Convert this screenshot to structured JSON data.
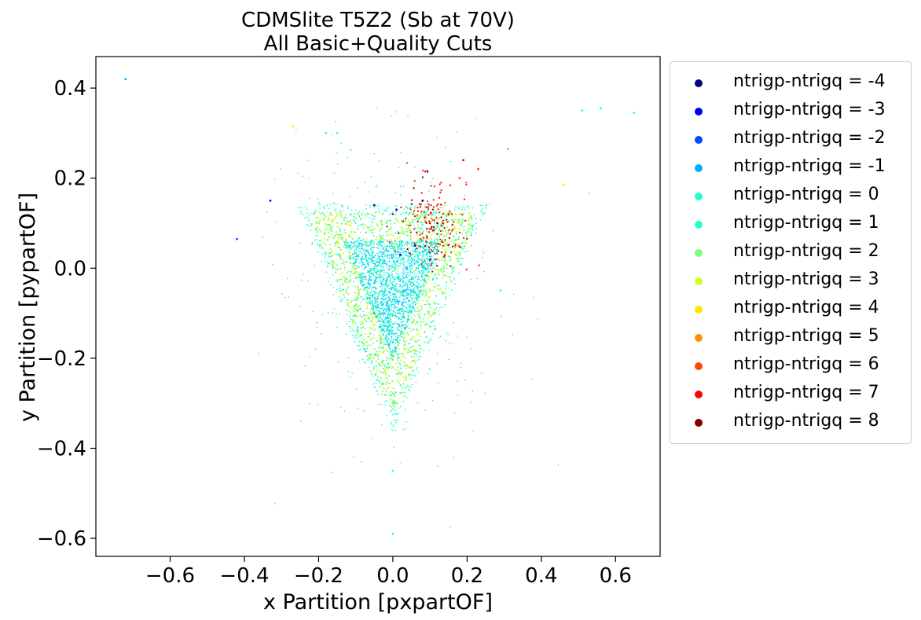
{
  "chart_data": {
    "type": "scatter",
    "title": "CDMSlite T5Z2 (Sb at 70V)",
    "subtitle": "All Basic+Quality Cuts",
    "xlabel": "x Partition [pxpartOF]",
    "ylabel": "y Partition [pypartOF]",
    "xlim": [
      -0.8,
      0.72
    ],
    "ylim": [
      -0.64,
      0.47
    ],
    "x_ticks": [
      -0.6,
      -0.4,
      -0.2,
      0.0,
      0.2,
      0.4,
      0.6
    ],
    "y_ticks": [
      -0.6,
      -0.4,
      -0.2,
      0.0,
      0.2,
      0.4
    ],
    "x_tick_labels": [
      "−0.6",
      "−0.4",
      "−0.2",
      "0.0",
      "0.2",
      "0.4",
      "0.6"
    ],
    "y_tick_labels": [
      "−0.6",
      "−0.4",
      "−0.2",
      "0.0",
      "0.2",
      "0.4"
    ],
    "grid": false,
    "legend_position": "outside-right",
    "series": [
      {
        "name": "ntrigp-ntrigq = -4",
        "color": "#00007f",
        "points": [
          [
            0.02,
            0.03
          ],
          [
            -0.05,
            0.14
          ]
        ]
      },
      {
        "name": "ntrigp-ntrigq = -3",
        "color": "#0000f1",
        "points": [
          [
            -0.33,
            0.15
          ],
          [
            0.01,
            0.13
          ],
          [
            0.06,
            0.05
          ]
        ]
      },
      {
        "name": "ntrigp-ntrigq = -2",
        "color": "#004cff",
        "points": [
          [
            -0.42,
            0.065
          ],
          [
            0.0,
            0.12
          ],
          [
            0.08,
            0.15
          ]
        ]
      },
      {
        "name": "ntrigp-ntrigq = -1",
        "color": "#00b0ff",
        "points": [
          [
            -0.72,
            0.42
          ],
          [
            0.03,
            -0.05
          ],
          [
            -0.05,
            -0.1
          ]
        ]
      },
      {
        "name": "ntrigp-ntrigq = 0",
        "color": "#29ffce",
        "shape": "inner-triangle-core",
        "points": [
          [
            0.56,
            0.355
          ],
          [
            0.51,
            0.35
          ],
          [
            0.65,
            0.345
          ],
          [
            -0.02,
            -0.05
          ],
          [
            0.0,
            -0.59
          ]
        ]
      },
      {
        "name": "ntrigp-ntrigq = 1",
        "color": "#29ffce",
        "shape": "outer-triangle-halo",
        "points": [
          [
            -0.18,
            0.3
          ],
          [
            -0.15,
            0.3
          ],
          [
            0.29,
            -0.05
          ],
          [
            0.0,
            -0.45
          ]
        ]
      },
      {
        "name": "ntrigp-ntrigq = 2",
        "color": "#7dff7a",
        "shape": "triangle-band",
        "points": [
          [
            -0.2,
            0.1
          ],
          [
            0.2,
            0.08
          ],
          [
            0.0,
            -0.3
          ]
        ]
      },
      {
        "name": "ntrigp-ntrigq = 3",
        "color": "#ceff29",
        "shape": "triangle-band",
        "points": [
          [
            -0.15,
            0.06
          ],
          [
            0.0,
            -0.22
          ],
          [
            0.12,
            0.05
          ]
        ]
      },
      {
        "name": "ntrigp-ntrigq = 4",
        "color": "#ffe600",
        "points": [
          [
            -0.27,
            0.315
          ],
          [
            0.46,
            0.185
          ]
        ]
      },
      {
        "name": "ntrigp-ntrigq = 5",
        "color": "#ff9400",
        "points": [
          [
            0.31,
            0.265
          ]
        ]
      },
      {
        "name": "ntrigp-ntrigq = 6",
        "color": "#ff4800",
        "points": [
          [
            0.18,
            0.2
          ],
          [
            0.23,
            0.22
          ],
          [
            0.14,
            0.03
          ]
        ]
      },
      {
        "name": "ntrigp-ntrigq = 7",
        "color": "#f10700",
        "shape": "cluster-upper-right",
        "points": [
          [
            0.1,
            0.1
          ],
          [
            0.15,
            0.12
          ],
          [
            0.19,
            0.24
          ]
        ]
      },
      {
        "name": "ntrigp-ntrigq = 8",
        "color": "#7f0000",
        "points": [
          [
            0.12,
            0.1
          ],
          [
            0.08,
            0.15
          ]
        ]
      }
    ]
  }
}
